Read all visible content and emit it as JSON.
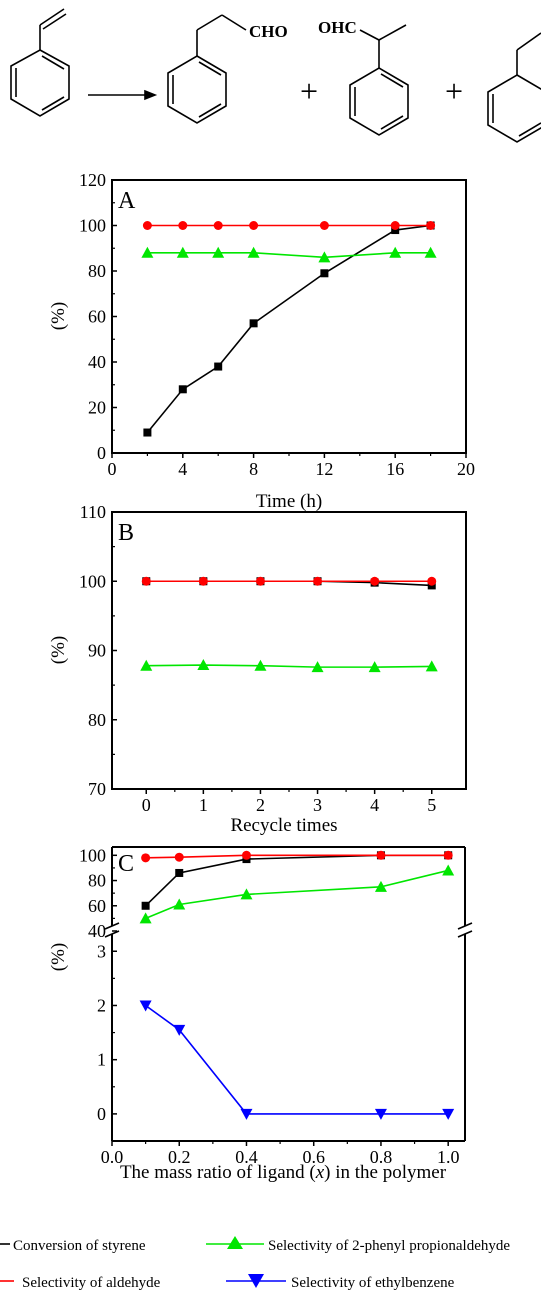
{
  "scheme": {
    "product_label_1": "CHO",
    "product_label_2": "OHC",
    "plus_sign": "+"
  },
  "colors": {
    "conversion": "#000000",
    "aldehyde": "#ff0000",
    "branched": "#00e600",
    "ethylbenzene": "#0000ff"
  },
  "legend": {
    "items": [
      {
        "label": "Conversion of styrene",
        "marker": "square",
        "color": "#000000"
      },
      {
        "label": "Selectivity of 2-phenyl propionaldehyde",
        "marker": "triangle-up",
        "color": "#00e600"
      },
      {
        "label": "Selectivity of aldehyde",
        "marker": "circle",
        "color": "#ff0000"
      },
      {
        "label": "Selectivity of ethylbenzene",
        "marker": "triangle-down",
        "color": "#0000ff"
      }
    ]
  },
  "chart_data": [
    {
      "panel": "A",
      "type": "line",
      "xlabel": "Time (h)",
      "ylabel": "(%)",
      "xlim": [
        0,
        20
      ],
      "ylim": [
        0,
        120
      ],
      "xticks": [
        0,
        4,
        8,
        12,
        16,
        20
      ],
      "yticks": [
        0,
        20,
        40,
        60,
        80,
        100,
        120
      ],
      "x": [
        2,
        4,
        6,
        8,
        12,
        16,
        18
      ],
      "series": [
        {
          "key": "conversion",
          "marker": "square",
          "values": [
            9,
            28,
            38,
            57,
            79,
            98,
            100
          ]
        },
        {
          "key": "aldehyde",
          "marker": "circle",
          "values": [
            100,
            100,
            100,
            100,
            100,
            100,
            100
          ]
        },
        {
          "key": "branched",
          "marker": "triangle-up",
          "values": [
            88,
            88,
            88,
            88,
            86,
            88,
            88
          ]
        }
      ]
    },
    {
      "panel": "B",
      "type": "line",
      "xlabel": "Recycle times",
      "ylabel": "(%)",
      "xlim": [
        -0.6,
        5.6
      ],
      "ylim": [
        70,
        110
      ],
      "xticks": [
        0,
        1,
        2,
        3,
        4,
        5
      ],
      "yticks": [
        70,
        80,
        90,
        100,
        110
      ],
      "x": [
        0,
        1,
        2,
        3,
        4,
        5
      ],
      "series": [
        {
          "key": "conversion",
          "marker": "square",
          "values": [
            100,
            100,
            100,
            100,
            99.8,
            99.4
          ]
        },
        {
          "key": "aldehyde",
          "marker": "circle",
          "values": [
            100,
            100,
            100,
            100,
            100,
            100
          ]
        },
        {
          "key": "branched",
          "marker": "triangle-up",
          "values": [
            87.8,
            87.9,
            87.8,
            87.6,
            87.6,
            87.7
          ]
        }
      ]
    },
    {
      "panel": "C",
      "type": "line",
      "xlabel": "The mass ratio of ligand (x) in the polymer",
      "ylabel": "(%)",
      "xlim": [
        0.0,
        1.05
      ],
      "xticks": [
        0.0,
        0.2,
        0.4,
        0.6,
        0.8,
        1.0
      ],
      "broken_y_axis": true,
      "upper_ylim": [
        40,
        105
      ],
      "upper_yticks": [
        40,
        60,
        80,
        100
      ],
      "lower_ylim": [
        -0.5,
        3.3
      ],
      "lower_yticks": [
        0,
        1,
        2,
        3
      ],
      "x": [
        0.1,
        0.2,
        0.4,
        0.8,
        1.0
      ],
      "series": [
        {
          "key": "conversion",
          "marker": "square",
          "axis": "upper",
          "values": [
            60,
            86,
            97,
            100,
            100
          ]
        },
        {
          "key": "aldehyde",
          "marker": "circle",
          "axis": "upper",
          "values": [
            98,
            98.5,
            100,
            100,
            100
          ]
        },
        {
          "key": "branched",
          "marker": "triangle-up",
          "axis": "upper",
          "values": [
            50,
            61,
            69,
            75,
            88
          ]
        },
        {
          "key": "ethylbenzene",
          "marker": "triangle-down",
          "axis": "lower",
          "values": [
            2.0,
            1.55,
            0,
            0,
            0
          ]
        }
      ]
    }
  ]
}
